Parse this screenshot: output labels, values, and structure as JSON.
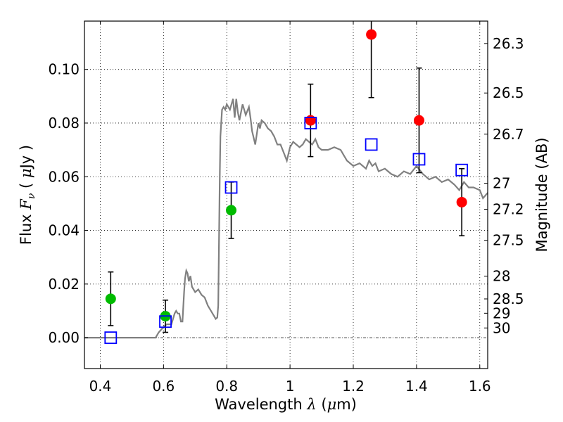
{
  "chart_data": {
    "type": "scatter",
    "xlabel": {
      "prefix": "Wavelength",
      "symbol": "λ",
      "unit_open": " (",
      "unit_mu": "μ",
      "unit_close": "m)"
    },
    "ylabel": {
      "prefix": "Flux",
      "symbol": "F",
      "sub": "ν",
      "unit_open": "(",
      "unit_mu": "μ",
      "unit_close": "Jy )"
    },
    "y2label": "Magnitude (AB)",
    "xlim": [
      0.35,
      1.625
    ],
    "ylim": [
      -0.0115,
      0.118
    ],
    "x_ticks": [
      0.4,
      0.6,
      0.8,
      1.0,
      1.2,
      1.4,
      1.6
    ],
    "x_tick_labels": [
      "0.4",
      "0.6",
      "0.8",
      "1",
      "1.2",
      "1.4",
      "1.6"
    ],
    "y_ticks": [
      0.0,
      0.02,
      0.04,
      0.06,
      0.08,
      0.1
    ],
    "y_tick_labels": [
      "0.00",
      "0.02",
      "0.04",
      "0.06",
      "0.08",
      "0.10"
    ],
    "y2_ticks": [
      26.3,
      26.5,
      26.7,
      27,
      27.2,
      27.5,
      28,
      28.5,
      29,
      30
    ],
    "y2_tick_labels": [
      "26.3",
      "26.5",
      "26.7",
      "27",
      "27.2",
      "27.5",
      "28",
      "28.5",
      "29",
      "30"
    ],
    "grid": true,
    "colors": {
      "model": "#808080",
      "detected": "#ff0000",
      "weak": "#00bb00",
      "model_flux": "#0000ff",
      "errorbar": "#000000"
    },
    "model_sed": {
      "x": [
        0.35,
        0.575,
        0.585,
        0.6,
        0.61,
        0.625,
        0.635,
        0.64,
        0.645,
        0.65,
        0.655,
        0.66,
        0.665,
        0.668,
        0.672,
        0.676,
        0.68,
        0.685,
        0.69,
        0.7,
        0.71,
        0.72,
        0.73,
        0.74,
        0.75,
        0.76,
        0.765,
        0.77,
        0.773,
        0.776,
        0.778,
        0.78,
        0.785,
        0.79,
        0.795,
        0.8,
        0.81,
        0.82,
        0.825,
        0.83,
        0.835,
        0.84,
        0.85,
        0.855,
        0.86,
        0.87,
        0.875,
        0.88,
        0.89,
        0.9,
        0.905,
        0.91,
        0.92,
        0.93,
        0.94,
        0.95,
        0.96,
        0.97,
        0.98,
        0.99,
        1.0,
        1.01,
        1.02,
        1.03,
        1.04,
        1.05,
        1.06,
        1.07,
        1.08,
        1.09,
        1.1,
        1.12,
        1.14,
        1.16,
        1.18,
        1.2,
        1.22,
        1.24,
        1.25,
        1.26,
        1.27,
        1.28,
        1.3,
        1.32,
        1.34,
        1.36,
        1.38,
        1.4,
        1.42,
        1.44,
        1.46,
        1.48,
        1.5,
        1.52,
        1.535,
        1.55,
        1.565,
        1.58,
        1.6,
        1.61,
        1.625
      ],
      "y": [
        0.0,
        0.0,
        0.002,
        0.004,
        0.005,
        0.005,
        0.009,
        0.01,
        0.009,
        0.009,
        0.006,
        0.006,
        0.017,
        0.022,
        0.025,
        0.024,
        0.021,
        0.023,
        0.019,
        0.017,
        0.018,
        0.016,
        0.015,
        0.012,
        0.01,
        0.008,
        0.007,
        0.0075,
        0.012,
        0.04,
        0.06,
        0.075,
        0.085,
        0.086,
        0.085,
        0.087,
        0.085,
        0.089,
        0.082,
        0.089,
        0.084,
        0.081,
        0.087,
        0.085,
        0.083,
        0.086,
        0.082,
        0.077,
        0.072,
        0.08,
        0.078,
        0.081,
        0.08,
        0.078,
        0.077,
        0.075,
        0.072,
        0.072,
        0.069,
        0.066,
        0.071,
        0.073,
        0.072,
        0.071,
        0.072,
        0.074,
        0.073,
        0.072,
        0.074,
        0.071,
        0.07,
        0.07,
        0.071,
        0.07,
        0.066,
        0.064,
        0.065,
        0.063,
        0.066,
        0.064,
        0.065,
        0.062,
        0.063,
        0.061,
        0.06,
        0.062,
        0.061,
        0.064,
        0.061,
        0.059,
        0.06,
        0.058,
        0.059,
        0.057,
        0.055,
        0.058,
        0.056,
        0.056,
        0.055,
        0.052,
        0.054
      ]
    },
    "series": [
      {
        "x": [
          1.065,
          1.257,
          1.408,
          1.543
        ],
        "y": [
          0.081,
          0.113,
          0.081,
          0.0505
        ],
        "yerr": [
          0.0135,
          0.0235,
          0.0195,
          0.0125
        ]
      },
      {
        "x": [
          0.433,
          0.606,
          0.814
        ],
        "y": [
          0.0145,
          0.008,
          0.0475
        ],
        "yerr": [
          0.01,
          0.006,
          0.0105
        ]
      },
      {
        "x": [
          0.433,
          0.606,
          0.814,
          1.065,
          1.257,
          1.408,
          1.543
        ],
        "y": [
          0.0,
          0.006,
          0.056,
          0.08,
          0.072,
          0.0665,
          0.0625
        ]
      }
    ]
  }
}
